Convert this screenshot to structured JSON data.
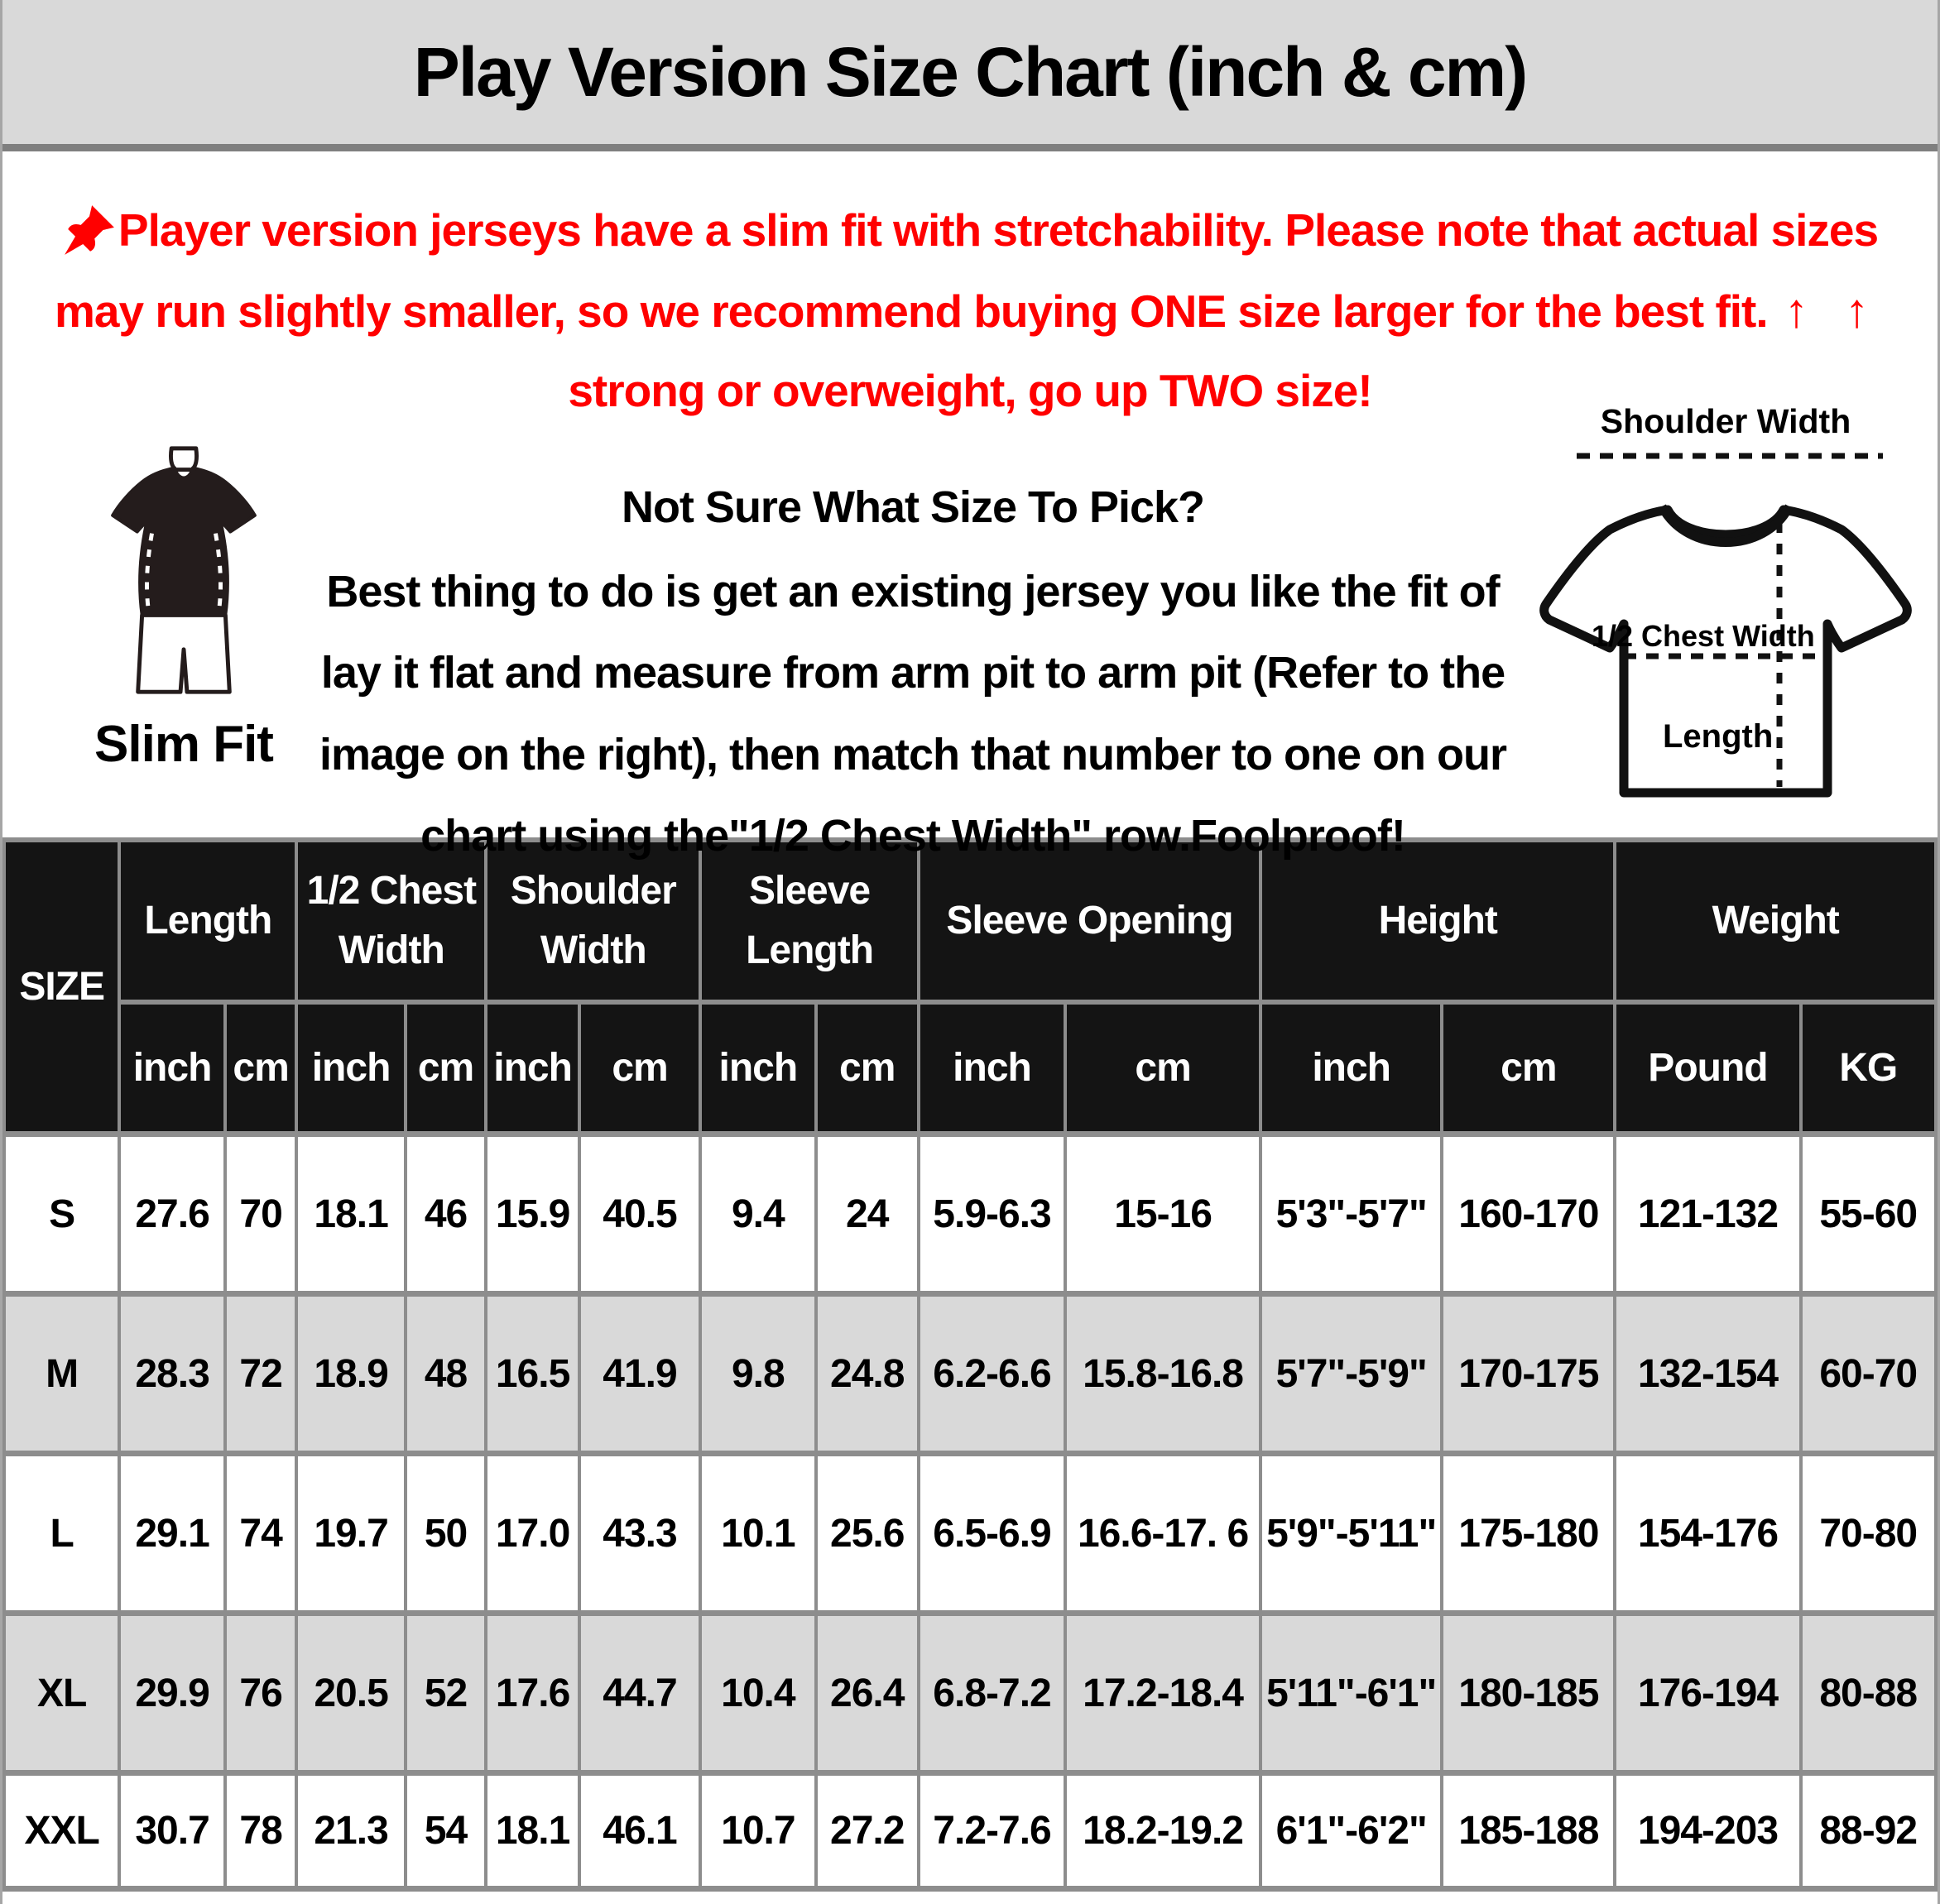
{
  "title": "Play Version Size Chart (inch & cm)",
  "notice": {
    "icon": "pushpin-icon",
    "part1": "Player version jerseys have a slim fit with stretchability. Please note that actual sizes may run slightly smaller, so we recommend buying ONE size larger for the best fit. ",
    "arrows": "↑ ↑",
    "part2": " strong or overweight, go up TWO size!",
    "color": "#ff0000"
  },
  "fit_guide": {
    "slim_fit_label": "Slim Fit",
    "heading": "Not Sure What Size To Pick?",
    "body": "Best thing to do is get an existing jersey you like the fit of lay it flat and measure from arm pit to arm pit (Refer to the image on the right), then match that number to one on our chart using the\"1/2 Chest Width\" row.Foolproof!"
  },
  "diagram": {
    "shoulder_width_label": "Shoulder Width",
    "half_chest_width_label": "1/2 Chest Width",
    "length_label": "Length"
  },
  "table": {
    "size_label": "SIZE",
    "header_bg": "#141414",
    "alt_row_bg": "#d9d9d9",
    "groups": [
      {
        "label": "Length",
        "units": [
          "inch",
          "cm"
        ]
      },
      {
        "label": "1/2 Chest Width",
        "units": [
          "inch",
          "cm"
        ]
      },
      {
        "label": "Shoulder Width",
        "units": [
          "inch",
          "cm"
        ]
      },
      {
        "label": "Sleeve Length",
        "units": [
          "inch",
          "cm"
        ]
      },
      {
        "label": "Sleeve Opening",
        "units": [
          "inch",
          "cm"
        ]
      },
      {
        "label": "Height",
        "units": [
          "inch",
          "cm"
        ]
      },
      {
        "label": "Weight",
        "units": [
          "Pound",
          "KG"
        ]
      }
    ],
    "rows": [
      {
        "size": "S",
        "values": [
          "27.6",
          "70",
          "18.1",
          "46",
          "15.9",
          "40.5",
          "9.4",
          "24",
          "5.9-6.3",
          "15-16",
          "5'3\"-5'7\"",
          "160-170",
          "121-132",
          "55-60"
        ]
      },
      {
        "size": "M",
        "values": [
          "28.3",
          "72",
          "18.9",
          "48",
          "16.5",
          "41.9",
          "9.8",
          "24.8",
          "6.2-6.6",
          "15.8-16.8",
          "5'7\"-5'9\"",
          "170-175",
          "132-154",
          "60-70"
        ]
      },
      {
        "size": "L",
        "values": [
          "29.1",
          "74",
          "19.7",
          "50",
          "17.0",
          "43.3",
          "10.1",
          "25.6",
          "6.5-6.9",
          "16.6-17. 6",
          "5'9\"-5'11\"",
          "175-180",
          "154-176",
          "70-80"
        ]
      },
      {
        "size": "XL",
        "values": [
          "29.9",
          "76",
          "20.5",
          "52",
          "17.6",
          "44.7",
          "10.4",
          "26.4",
          "6.8-7.2",
          "17.2-18.4",
          "5'11\"-6'1\"",
          "180-185",
          "176-194",
          "80-88"
        ]
      },
      {
        "size": "XXL",
        "values": [
          "30.7",
          "78",
          "21.3",
          "54",
          "18.1",
          "46.1",
          "10.7",
          "27.2",
          "7.2-7.6",
          "18.2-19.2",
          "6'1\"-6'2\"",
          "185-188",
          "194-203",
          "88-92"
        ]
      }
    ]
  }
}
